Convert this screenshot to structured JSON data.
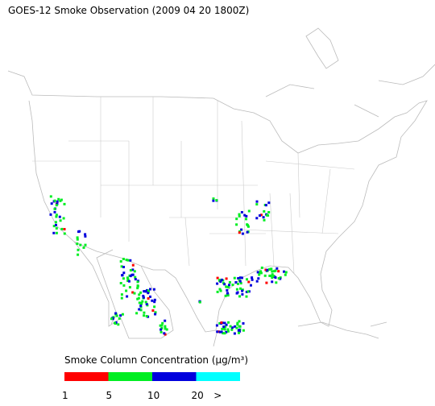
{
  "title": "GOES-12 Smoke Observation (2009 04 20  1800Z)",
  "legend": {
    "title": "Smoke Column Concentration (μg/m³)",
    "colors": [
      "#ff0000",
      "#00ee22",
      "#0000dd",
      "#00ffff"
    ],
    "ticks": [
      "1",
      "5",
      "10",
      "20",
      ">"
    ]
  }
}
